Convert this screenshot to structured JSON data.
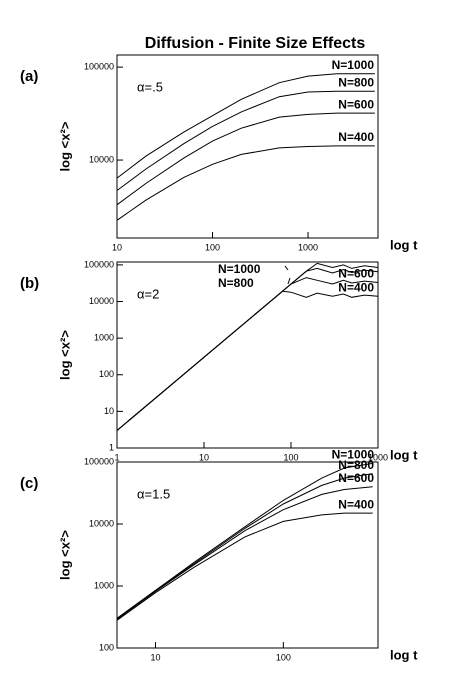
{
  "chart_data": [
    {
      "type": "line",
      "title": "Diffusion - Finite Size Effects",
      "label": "(a)",
      "annotation": "α=.5",
      "xlabel": "log t",
      "ylabel": "log <x²>",
      "xscale": "log",
      "yscale": "log",
      "color": "#000000",
      "xlim": [
        10,
        5400
      ],
      "ylim": [
        1450,
        135000
      ],
      "xticks": [
        10,
        100,
        1000
      ],
      "yticks": [
        10000,
        100000
      ],
      "x": [
        10,
        20,
        50,
        100,
        200,
        500,
        1000,
        2000,
        5000
      ],
      "series": [
        {
          "name": "N=1000",
          "values": [
            6400,
            11000,
            20000,
            30000,
            45000,
            68000,
            80000,
            85000,
            85000
          ]
        },
        {
          "name": "N=800",
          "values": [
            4700,
            8000,
            15000,
            23000,
            33000,
            48000,
            54000,
            55000,
            55000
          ]
        },
        {
          "name": "N=600",
          "values": [
            3300,
            5600,
            10500,
            16000,
            22000,
            29000,
            31000,
            32000,
            32000
          ]
        },
        {
          "name": "N=400",
          "values": [
            2250,
            3700,
            6500,
            9000,
            11500,
            13500,
            14000,
            14200,
            14200
          ]
        }
      ]
    },
    {
      "type": "line",
      "label": "(b)",
      "annotation": "α=2",
      "xlabel": "log t",
      "ylabel": "log <x²>",
      "xscale": "log",
      "yscale": "log",
      "color": "#000000",
      "xlim": [
        1,
        1000
      ],
      "ylim": [
        1,
        120000
      ],
      "xticks": [
        1,
        10,
        100,
        1000
      ],
      "yticks": [
        1,
        10,
        100,
        1000,
        10000,
        100000
      ],
      "x": [
        1,
        10,
        50,
        80,
        100,
        150,
        200,
        300,
        400,
        500,
        700,
        1000
      ],
      "series": [
        {
          "name": "N=1000",
          "values": [
            3,
            300,
            7500,
            19200,
            30000,
            67500,
            110000,
            85000,
            100000,
            80000,
            95000,
            85000
          ]
        },
        {
          "name": "N=800",
          "values": [
            3,
            300,
            7500,
            19200,
            30000,
            67500,
            80000,
            60000,
            75000,
            62000,
            72000,
            65000
          ]
        },
        {
          "name": "N=600",
          "values": [
            3,
            300,
            7500,
            19200,
            30000,
            45000,
            38000,
            30000,
            38000,
            32000,
            36000,
            33000
          ]
        },
        {
          "name": "N=400",
          "values": [
            3,
            300,
            7500,
            19000,
            18000,
            13000,
            17000,
            14000,
            16000,
            13000,
            15000,
            14000
          ]
        }
      ]
    },
    {
      "type": "line",
      "label": "(c)",
      "annotation": "α=1.5",
      "xlabel": "log t",
      "ylabel": "log <x²>",
      "xscale": "log",
      "yscale": "log",
      "color": "#000000",
      "xlim": [
        5,
        550
      ],
      "ylim": [
        100,
        100000
      ],
      "xticks": [
        10,
        100
      ],
      "yticks": [
        100,
        1000,
        10000,
        100000
      ],
      "x": [
        5,
        10,
        20,
        50,
        100,
        200,
        300,
        500
      ],
      "series": [
        {
          "name": "N=1000",
          "values": [
            300,
            850,
            2400,
            9000,
            24000,
            55000,
            80000,
            95000
          ]
        },
        {
          "name": "N=800",
          "values": [
            300,
            850,
            2300,
            8500,
            21000,
            42000,
            55000,
            65000
          ]
        },
        {
          "name": "N=600",
          "values": [
            290,
            820,
            2200,
            7800,
            17000,
            30000,
            36000,
            40000
          ]
        },
        {
          "name": "N=400",
          "values": [
            280,
            780,
            2000,
            6200,
            11000,
            14000,
            15000,
            15000
          ]
        }
      ]
    }
  ]
}
